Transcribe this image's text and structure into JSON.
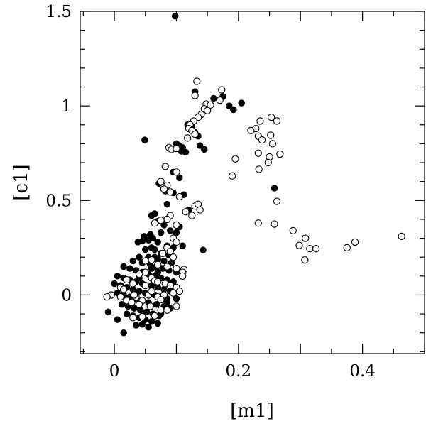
{
  "chart_data": {
    "type": "scatter",
    "title": "",
    "xlabel": "[m1]",
    "ylabel": "[c1]",
    "xlim": [
      -0.055,
      0.5
    ],
    "ylim": [
      -0.31,
      1.5
    ],
    "xticks": [
      {
        "value": 0,
        "label": "0"
      },
      {
        "value": 0.2,
        "label": "0.2"
      },
      {
        "value": 0.4,
        "label": "0.4"
      }
    ],
    "yticks": [
      {
        "value": 0,
        "label": "0"
      },
      {
        "value": 0.5,
        "label": "0.5"
      },
      {
        "value": 1,
        "label": "1"
      },
      {
        "value": 1.5,
        "label": "1.5"
      }
    ],
    "grid": false,
    "series": [
      {
        "marker": "filled-circle",
        "color": "#000000",
        "points": [
          [
            0.098,
            1.475
          ],
          [
            0.13,
            1.075
          ],
          [
            0.16,
            1.04
          ],
          [
            0.175,
            1.05
          ],
          [
            0.185,
            1.0
          ],
          [
            0.205,
            1.015
          ],
          [
            0.192,
            0.98
          ],
          [
            0.118,
            0.9
          ],
          [
            0.125,
            0.895
          ],
          [
            0.13,
            0.86
          ],
          [
            0.135,
            0.84
          ],
          [
            0.049,
            0.82
          ],
          [
            0.1,
            0.8
          ],
          [
            0.105,
            0.79
          ],
          [
            0.11,
            0.78
          ],
          [
            0.115,
            0.755
          ],
          [
            0.145,
            0.77
          ],
          [
            0.108,
            0.76
          ],
          [
            0.138,
            0.79
          ],
          [
            0.095,
            0.65
          ],
          [
            0.105,
            0.62
          ],
          [
            0.258,
            0.565
          ],
          [
            0.072,
            0.59
          ],
          [
            0.082,
            0.55
          ],
          [
            0.095,
            0.54
          ],
          [
            0.112,
            0.53
          ],
          [
            0.12,
            0.45
          ],
          [
            0.085,
            0.48
          ],
          [
            0.065,
            0.43
          ],
          [
            0.06,
            0.42
          ],
          [
            0.07,
            0.39
          ],
          [
            0.08,
            0.37
          ],
          [
            0.09,
            0.34
          ],
          [
            0.1,
            0.33
          ],
          [
            0.105,
            0.36
          ],
          [
            0.075,
            0.33
          ],
          [
            0.058,
            0.32
          ],
          [
            0.048,
            0.31
          ],
          [
            0.062,
            0.3
          ],
          [
            0.055,
            0.29
          ],
          [
            0.045,
            0.285
          ],
          [
            0.038,
            0.28
          ],
          [
            0.07,
            0.28
          ],
          [
            0.085,
            0.26
          ],
          [
            0.095,
            0.25
          ],
          [
            0.06,
            0.25
          ],
          [
            0.05,
            0.24
          ],
          [
            0.065,
            0.24
          ],
          [
            0.143,
            0.238
          ],
          [
            0.11,
            0.26
          ],
          [
            0.075,
            0.22
          ],
          [
            0.088,
            0.21
          ],
          [
            0.04,
            0.2
          ],
          [
            0.055,
            0.2
          ],
          [
            0.065,
            0.2
          ],
          [
            0.07,
            0.19
          ],
          [
            0.08,
            0.18
          ],
          [
            0.092,
            0.17
          ],
          [
            0.03,
            0.18
          ],
          [
            0.045,
            0.17
          ],
          [
            0.058,
            0.16
          ],
          [
            0.068,
            0.15
          ],
          [
            0.078,
            0.14
          ],
          [
            0.088,
            0.13
          ],
          [
            0.1,
            0.12
          ],
          [
            0.015,
            0.15
          ],
          [
            0.025,
            0.14
          ],
          [
            0.035,
            0.13
          ],
          [
            0.045,
            0.12
          ],
          [
            0.055,
            0.11
          ],
          [
            0.065,
            0.1
          ],
          [
            0.075,
            0.09
          ],
          [
            0.085,
            0.08
          ],
          [
            0.095,
            0.07
          ],
          [
            0.005,
            0.1
          ],
          [
            0.015,
            0.09
          ],
          [
            0.025,
            0.08
          ],
          [
            0.035,
            0.07
          ],
          [
            0.045,
            0.06
          ],
          [
            0.06,
            0.05
          ],
          [
            0.07,
            0.04
          ],
          [
            0.08,
            0.03
          ],
          [
            0.09,
            0.02
          ],
          [
            0.0,
            0.06
          ],
          [
            0.01,
            0.05
          ],
          [
            0.02,
            0.04
          ],
          [
            0.03,
            0.03
          ],
          [
            0.04,
            0.02
          ],
          [
            0.05,
            0.01
          ],
          [
            0.065,
            0.0
          ],
          [
            0.075,
            -0.01
          ],
          [
            0.085,
            -0.02
          ],
          [
            0.1,
            -0.02
          ],
          [
            0.005,
            0.01
          ],
          [
            0.015,
            0.0
          ],
          [
            0.025,
            -0.01
          ],
          [
            0.035,
            -0.02
          ],
          [
            0.045,
            -0.03
          ],
          [
            0.055,
            -0.04
          ],
          [
            0.068,
            -0.05
          ],
          [
            0.08,
            -0.06
          ],
          [
            0.09,
            -0.07
          ],
          [
            0.012,
            -0.05
          ],
          [
            0.022,
            -0.06
          ],
          [
            0.032,
            -0.07
          ],
          [
            0.042,
            -0.08
          ],
          [
            0.052,
            -0.09
          ],
          [
            0.062,
            -0.1
          ],
          [
            0.072,
            -0.11
          ],
          [
            0.02,
            -0.1
          ],
          [
            0.03,
            -0.11
          ],
          [
            0.04,
            -0.12
          ],
          [
            0.05,
            -0.13
          ],
          [
            0.06,
            -0.14
          ],
          [
            0.07,
            -0.15
          ],
          [
            -0.01,
            -0.09
          ],
          [
            0.005,
            -0.13
          ],
          [
            0.015,
            -0.2
          ],
          [
            0.035,
            -0.16
          ],
          [
            0.045,
            -0.155
          ],
          [
            0.055,
            -0.17
          ],
          [
            0.075,
            -0.1
          ],
          [
            0.085,
            -0.04
          ],
          [
            0.06,
            0.14
          ],
          [
            0.07,
            0.12
          ],
          [
            0.04,
            0.09
          ]
        ]
      },
      {
        "marker": "open-circle",
        "color": "#000000",
        "points": [
          [
            0.133,
            1.13
          ],
          [
            0.173,
            1.085
          ],
          [
            0.13,
            1.055
          ],
          [
            0.17,
            1.03
          ],
          [
            0.148,
            1.01
          ],
          [
            0.155,
            1.005
          ],
          [
            0.145,
            0.985
          ],
          [
            0.15,
            0.975
          ],
          [
            0.14,
            0.955
          ],
          [
            0.135,
            0.94
          ],
          [
            0.128,
            0.92
          ],
          [
            0.122,
            0.9
          ],
          [
            0.12,
            0.88
          ],
          [
            0.125,
            0.87
          ],
          [
            0.13,
            0.85
          ],
          [
            0.118,
            0.83
          ],
          [
            0.253,
            0.94
          ],
          [
            0.262,
            0.92
          ],
          [
            0.235,
            0.92
          ],
          [
            0.228,
            0.88
          ],
          [
            0.22,
            0.87
          ],
          [
            0.232,
            0.84
          ],
          [
            0.252,
            0.845
          ],
          [
            0.238,
            0.82
          ],
          [
            0.255,
            0.8
          ],
          [
            0.232,
            0.75
          ],
          [
            0.25,
            0.73
          ],
          [
            0.267,
            0.745
          ],
          [
            0.195,
            0.72
          ],
          [
            0.248,
            0.7
          ],
          [
            0.233,
            0.665
          ],
          [
            0.19,
            0.63
          ],
          [
            0.088,
            0.78
          ],
          [
            0.092,
            0.77
          ],
          [
            0.1,
            0.775
          ],
          [
            0.082,
            0.68
          ],
          [
            0.1,
            0.65
          ],
          [
            0.075,
            0.6
          ],
          [
            0.085,
            0.58
          ],
          [
            0.08,
            0.56
          ],
          [
            0.09,
            0.545
          ],
          [
            0.105,
            0.52
          ],
          [
            0.262,
            0.495
          ],
          [
            0.13,
            0.47
          ],
          [
            0.135,
            0.48
          ],
          [
            0.138,
            0.45
          ],
          [
            0.115,
            0.44
          ],
          [
            0.125,
            0.42
          ],
          [
            0.09,
            0.42
          ],
          [
            0.085,
            0.4
          ],
          [
            0.075,
            0.395
          ],
          [
            0.065,
            0.38
          ],
          [
            0.1,
            0.37
          ],
          [
            0.232,
            0.38
          ],
          [
            0.258,
            0.375
          ],
          [
            0.288,
            0.34
          ],
          [
            0.308,
            0.3
          ],
          [
            0.298,
            0.262
          ],
          [
            0.315,
            0.245
          ],
          [
            0.325,
            0.245
          ],
          [
            0.375,
            0.25
          ],
          [
            0.388,
            0.28
          ],
          [
            0.463,
            0.31
          ],
          [
            0.307,
            0.185
          ],
          [
            0.095,
            0.3
          ],
          [
            0.1,
            0.28
          ],
          [
            0.085,
            0.25
          ],
          [
            0.09,
            0.23
          ],
          [
            0.078,
            0.22
          ],
          [
            0.095,
            0.2
          ],
          [
            0.06,
            0.185
          ],
          [
            0.05,
            0.18
          ],
          [
            0.07,
            0.16
          ],
          [
            0.085,
            0.15
          ],
          [
            0.1,
            0.14
          ],
          [
            0.112,
            0.135
          ],
          [
            0.11,
            0.12
          ],
          [
            0.05,
            0.12
          ],
          [
            0.04,
            0.11
          ],
          [
            0.06,
            0.09
          ],
          [
            0.065,
            0.075
          ],
          [
            0.07,
            0.07
          ],
          [
            0.082,
            0.06
          ],
          [
            0.09,
            0.05
          ],
          [
            0.1,
            0.04
          ],
          [
            0.105,
            0.02
          ],
          [
            0.095,
            0.01
          ],
          [
            0.08,
            0.0
          ],
          [
            0.07,
            -0.01
          ],
          [
            0.02,
            0.08
          ],
          [
            0.03,
            0.06
          ],
          [
            0.01,
            0.04
          ],
          [
            0.015,
            0.03
          ],
          [
            -0.005,
            0.0
          ],
          [
            0.01,
            -0.01
          ],
          [
            0.02,
            -0.03
          ],
          [
            0.035,
            -0.01
          ],
          [
            0.045,
            -0.03
          ],
          [
            0.055,
            0.0
          ],
          [
            0.04,
            -0.05
          ],
          [
            0.058,
            -0.06
          ],
          [
            0.075,
            -0.08
          ],
          [
            0.085,
            -0.08
          ],
          [
            0.065,
            -0.11
          ],
          [
            0.045,
            -0.115
          ],
          [
            0.03,
            -0.12
          ],
          [
            0.028,
            -0.04
          ],
          [
            0.1,
            -0.06
          ],
          [
            0.05,
            0.05
          ],
          [
            0.11,
            0.1
          ],
          [
            0.06,
            0.02
          ],
          [
            -0.012,
            -0.01
          ],
          [
            0.075,
            -0.025
          ],
          [
            0.032,
            0.0
          ]
        ]
      }
    ]
  }
}
